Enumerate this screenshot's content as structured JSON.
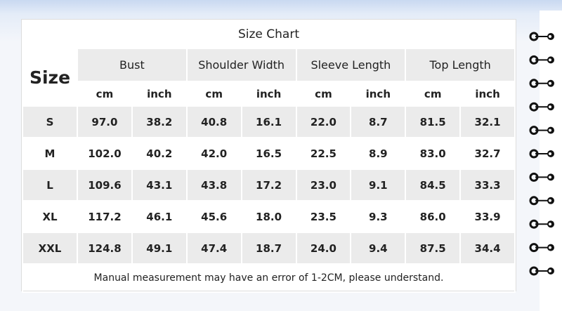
{
  "title": "Size Chart",
  "size_label": "Size",
  "columns": [
    {
      "name": "Bust",
      "units": [
        "cm",
        "inch"
      ]
    },
    {
      "name": "Shoulder Width",
      "units": [
        "cm",
        "inch"
      ]
    },
    {
      "name": "Sleeve Length",
      "units": [
        "cm",
        "inch"
      ]
    },
    {
      "name": "Top Length",
      "units": [
        "cm",
        "inch"
      ]
    }
  ],
  "rows": [
    {
      "size": "S",
      "values": [
        "97.0",
        "38.2",
        "40.8",
        "16.1",
        "22.0",
        "8.7",
        "81.5",
        "32.1"
      ]
    },
    {
      "size": "M",
      "values": [
        "102.0",
        "40.2",
        "42.0",
        "16.5",
        "22.5",
        "8.9",
        "83.0",
        "32.7"
      ]
    },
    {
      "size": "L",
      "values": [
        "109.6",
        "43.1",
        "43.8",
        "17.2",
        "23.0",
        "9.1",
        "84.5",
        "33.3"
      ]
    },
    {
      "size": "XL",
      "values": [
        "117.2",
        "46.1",
        "45.6",
        "18.0",
        "23.5",
        "9.3",
        "86.0",
        "33.9"
      ]
    },
    {
      "size": "XXL",
      "values": [
        "124.8",
        "49.1",
        "47.4",
        "18.7",
        "24.0",
        "9.4",
        "87.5",
        "34.4"
      ]
    }
  ],
  "note": "Manual measurement may have an error of 1-2CM, please understand."
}
